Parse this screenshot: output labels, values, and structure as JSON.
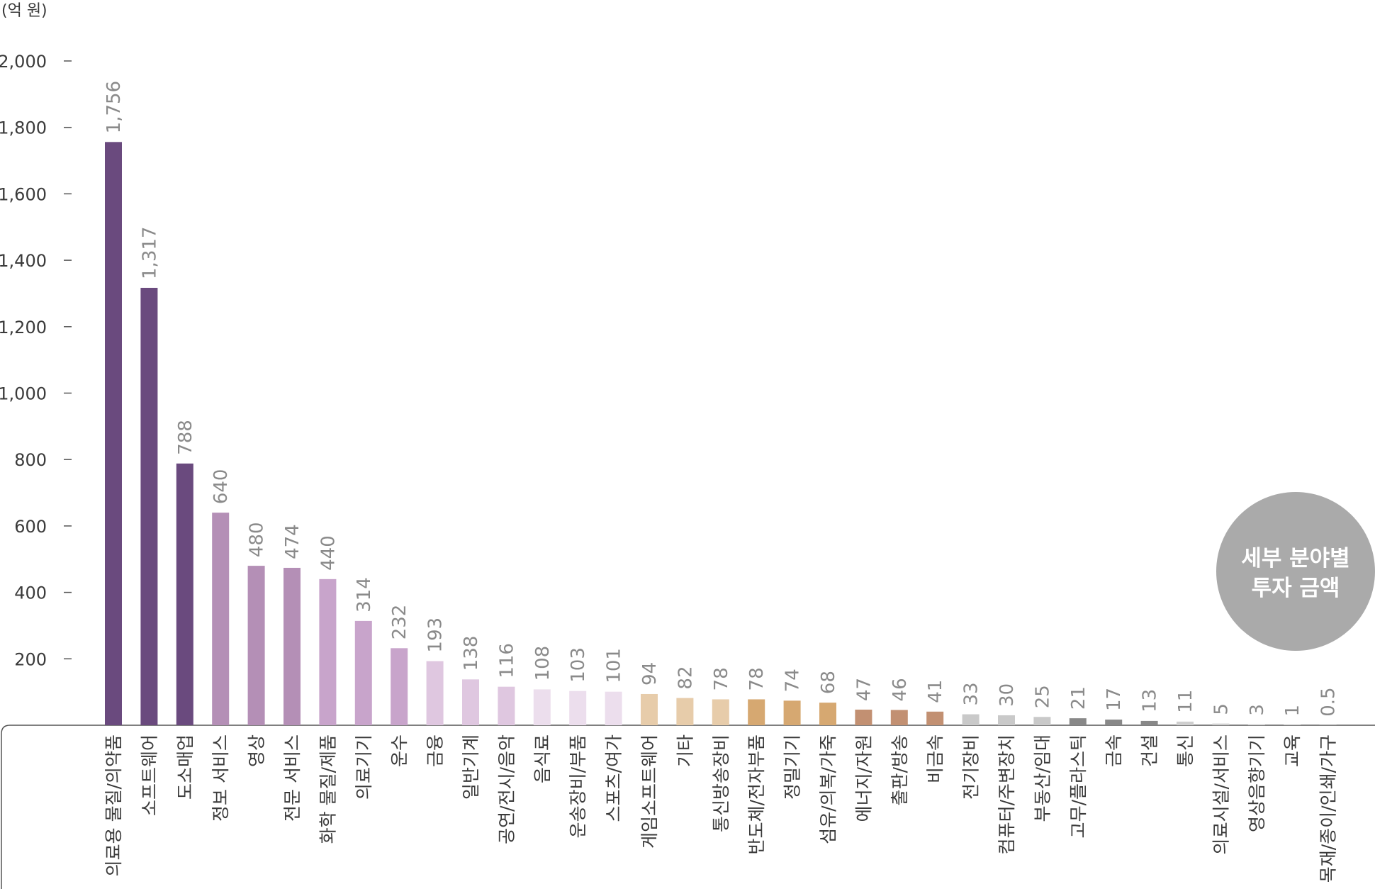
{
  "chart_data": {
    "type": "bar",
    "unit_label": "(억 원)",
    "ylim": [
      0,
      2000
    ],
    "yticks": [
      "2,000",
      "1,800",
      "1,600",
      "1,400",
      "1,200",
      "1,000",
      "800",
      "600",
      "400",
      "200"
    ],
    "categories": [
      "의료용 물질/의약품",
      "소프트웨어",
      "도소매업",
      "정보 서비스",
      "영상",
      "전문 서비스",
      "화학 물질/제품",
      "의료기기",
      "운수",
      "금융",
      "일반기계",
      "공연/전시/음악",
      "음식료",
      "운송장비/부품",
      "스포츠/여가",
      "게임소프트웨어",
      "기타",
      "통신방송장비",
      "반도체/전자부품",
      "정밀기기",
      "섬유/의복/가죽",
      "에너지/자원",
      "출판/방송",
      "비금속",
      "전기장비",
      "컴퓨터/주변장치",
      "부동산/임대",
      "고무/플라스틱",
      "금속",
      "건설",
      "통신",
      "의료시설/서비스",
      "영상음향기기",
      "교육",
      "목재/종이/인쇄/가구"
    ],
    "values": [
      1756,
      1317,
      788,
      640,
      480,
      474,
      440,
      314,
      232,
      193,
      138,
      116,
      108,
      103,
      101,
      94,
      82,
      78,
      78,
      74,
      68,
      47,
      46,
      41,
      33,
      30,
      25,
      21,
      17,
      13,
      11,
      5,
      3,
      1,
      0.5
    ],
    "value_labels": [
      "1,756",
      "1,317",
      "788",
      "640",
      "480",
      "474",
      "440",
      "314",
      "232",
      "193",
      "138",
      "116",
      "108",
      "103",
      "101",
      "94",
      "82",
      "78",
      "78",
      "74",
      "68",
      "47",
      "46",
      "41",
      "33",
      "30",
      "25",
      "21",
      "17",
      "13",
      "11",
      "5",
      "3",
      "1",
      "0.5"
    ],
    "colors": [
      "#6a4a7e",
      "#6a4a7e",
      "#6a4a7e",
      "#b48fb6",
      "#b48fb6",
      "#b48fb6",
      "#c8a4cb",
      "#c8a4cb",
      "#c8a4cb",
      "#dfc7e0",
      "#dfc7e0",
      "#dfc7e0",
      "#ecdeed",
      "#ecdeed",
      "#ecdeed",
      "#e7ccaa",
      "#e7ccaa",
      "#e7ccaa",
      "#d6a871",
      "#d6a871",
      "#d6a871",
      "#c29072",
      "#c29072",
      "#c29072",
      "#c9c9c9",
      "#c9c9c9",
      "#c9c9c9",
      "#888888",
      "#888888",
      "#888888",
      "#cfcfcf",
      "#cfcfcf",
      "#cfcfcf",
      "#cfcfcf",
      "#cfcfcf"
    ],
    "grid": false
  },
  "badge": {
    "line1": "세부 분야별",
    "line2": "투자 금액",
    "color": "#aaaaaa"
  }
}
